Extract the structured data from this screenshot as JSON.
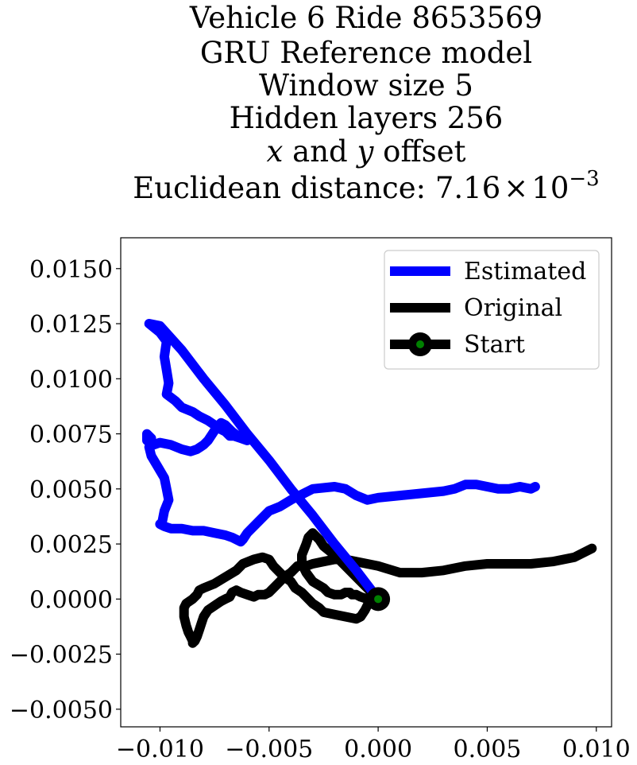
{
  "chart_data": {
    "type": "line",
    "title_lines": [
      "Vehicle 6 Ride 8653569",
      "GRU Reference model",
      "Window size 5",
      "Hidden layers 256"
    ],
    "offset_line": {
      "x_var": "x",
      "and_word": " and ",
      "y_var": "y",
      "suffix": " offset"
    },
    "distance_line": {
      "prefix": "Euclidean distance: ",
      "mantissa": "7.16",
      "times": "×",
      "base": "10",
      "exponent": "−3"
    },
    "xlim": [
      -0.0118,
      0.0107
    ],
    "ylim": [
      -0.0058,
      0.0164
    ],
    "x_ticks": [
      {
        "value": -0.01,
        "label": "−0.010"
      },
      {
        "value": -0.005,
        "label": "−0.005"
      },
      {
        "value": 0.0,
        "label": "0.000"
      },
      {
        "value": 0.005,
        "label": "0.005"
      },
      {
        "value": 0.01,
        "label": "0.010"
      }
    ],
    "y_ticks": [
      {
        "value": -0.005,
        "label": "−0.0050"
      },
      {
        "value": -0.0025,
        "label": "−0.0025"
      },
      {
        "value": 0.0,
        "label": "0.0000"
      },
      {
        "value": 0.0025,
        "label": "0.0025"
      },
      {
        "value": 0.005,
        "label": "0.0050"
      },
      {
        "value": 0.0075,
        "label": "0.0075"
      },
      {
        "value": 0.01,
        "label": "0.0100"
      },
      {
        "value": 0.0125,
        "label": "0.0125"
      },
      {
        "value": 0.015,
        "label": "0.0150"
      }
    ],
    "legend": {
      "placement": "upper-right",
      "entries": [
        {
          "label": "Estimated",
          "color": "#0000ff"
        },
        {
          "label": "Original",
          "color": "#000000"
        },
        {
          "label": "Start",
          "color": "#000000",
          "marker_color": "#008000"
        }
      ]
    },
    "series": [
      {
        "name": "Estimated",
        "color": "#0000ff",
        "x": [
          0.0,
          -0.001,
          -0.002,
          -0.003,
          -0.004,
          -0.005,
          -0.006,
          -0.007,
          -0.008,
          -0.009,
          -0.01,
          -0.0105,
          -0.01,
          -0.0097,
          -0.0098,
          -0.0097,
          -0.0096,
          -0.0097,
          -0.0093,
          -0.009,
          -0.0085,
          -0.0082,
          -0.0078,
          -0.0075,
          -0.0072,
          -0.007,
          -0.0068,
          -0.0066,
          -0.0063,
          -0.006,
          -0.0063,
          -0.0067,
          -0.007,
          -0.0072,
          -0.0074,
          -0.0076,
          -0.0078,
          -0.008,
          -0.0083,
          -0.0086,
          -0.009,
          -0.0095,
          -0.01,
          -0.0103,
          -0.0106,
          -0.0106,
          -0.0104,
          -0.0105,
          -0.0104,
          -0.0101,
          -0.0098,
          -0.0097,
          -0.0096,
          -0.0098,
          -0.0099,
          -0.01,
          -0.0098,
          -0.0095,
          -0.009,
          -0.0085,
          -0.008,
          -0.0075,
          -0.007,
          -0.0067,
          -0.0063,
          -0.0062,
          -0.006,
          -0.0055,
          -0.005,
          -0.0045,
          -0.004,
          -0.003,
          -0.002,
          -0.0015,
          -0.001,
          -0.0005,
          0.0,
          0.001,
          0.002,
          0.003,
          0.0035,
          0.004,
          0.0045,
          0.005,
          0.0055,
          0.006,
          0.0065,
          0.007,
          0.0072
        ],
        "y": [
          0.0,
          0.0013,
          0.0025,
          0.0038,
          0.005,
          0.0063,
          0.0075,
          0.0088,
          0.01,
          0.0113,
          0.0124,
          0.0125,
          0.0121,
          0.0117,
          0.011,
          0.0104,
          0.0098,
          0.0093,
          0.009,
          0.0087,
          0.0085,
          0.0083,
          0.0081,
          0.0079,
          0.0077,
          0.0076,
          0.0074,
          0.0074,
          0.0073,
          0.0072,
          0.0073,
          0.0076,
          0.0079,
          0.008,
          0.0078,
          0.0075,
          0.0072,
          0.007,
          0.0068,
          0.0067,
          0.0068,
          0.007,
          0.0071,
          0.007,
          0.0072,
          0.0075,
          0.0073,
          0.0069,
          0.0065,
          0.006,
          0.0055,
          0.005,
          0.0045,
          0.004,
          0.0035,
          0.0034,
          0.0033,
          0.0032,
          0.0032,
          0.0031,
          0.0031,
          0.003,
          0.0029,
          0.0028,
          0.0026,
          0.0027,
          0.003,
          0.0035,
          0.004,
          0.0042,
          0.0045,
          0.005,
          0.0051,
          0.005,
          0.0047,
          0.0045,
          0.0046,
          0.0047,
          0.0048,
          0.0049,
          0.005,
          0.0052,
          0.0052,
          0.0051,
          0.005,
          0.005,
          0.0051,
          0.005,
          0.0051
        ]
      },
      {
        "name": "Original",
        "color": "#000000",
        "x": [
          0.0098,
          0.009,
          0.008,
          0.007,
          0.006,
          0.005,
          0.004,
          0.003,
          0.002,
          0.001,
          0.0,
          -0.001,
          -0.0015,
          -0.002,
          -0.0025,
          -0.003,
          -0.0033,
          -0.0037,
          -0.004,
          -0.0043,
          -0.0045,
          -0.0047,
          -0.0049,
          -0.005,
          -0.0052,
          -0.0055,
          -0.0057,
          -0.006,
          -0.0063,
          -0.0065,
          -0.0067,
          -0.0068,
          -0.007,
          -0.0072,
          -0.0075,
          -0.0078,
          -0.008,
          -0.0081,
          -0.0082,
          -0.0083,
          -0.0084,
          -0.0085,
          -0.0085,
          -0.0086,
          -0.0087,
          -0.0088,
          -0.0089,
          -0.0089,
          -0.0088,
          -0.0085,
          -0.0083,
          -0.0082,
          -0.008,
          -0.0075,
          -0.007,
          -0.0065,
          -0.0062,
          -0.0057,
          -0.0053,
          -0.005,
          -0.0048,
          -0.0045,
          -0.0043,
          -0.004,
          -0.0038,
          -0.0035,
          -0.0032,
          -0.003,
          -0.0027,
          -0.0025,
          -0.002,
          -0.0015,
          -0.001,
          -0.0008,
          -0.0006,
          -0.0005,
          -0.0004,
          -0.0005,
          -0.0008,
          -0.001,
          -0.0012,
          -0.0013,
          -0.0015,
          -0.0017,
          -0.002,
          -0.0023,
          -0.0025,
          -0.003,
          -0.0033,
          -0.0035,
          -0.0035,
          -0.0033,
          -0.0032,
          -0.003,
          -0.0027,
          -0.0025,
          -0.002,
          -0.0015,
          -0.001,
          -0.0005,
          0.0
        ],
        "y": [
          0.0023,
          0.0019,
          0.0017,
          0.0016,
          0.0016,
          0.0016,
          0.0015,
          0.0013,
          0.0012,
          0.0012,
          0.0015,
          0.0017,
          0.0018,
          0.0018,
          0.0017,
          0.0016,
          0.0015,
          0.0015,
          0.0012,
          0.001,
          0.0008,
          0.0006,
          0.0004,
          0.0003,
          0.0002,
          0.0002,
          0.0001,
          0.0002,
          0.0003,
          0.0004,
          0.0003,
          0.0001,
          0.0,
          -0.0001,
          -0.0003,
          -0.0005,
          -0.0008,
          -0.0011,
          -0.0014,
          -0.0017,
          -0.0019,
          -0.002,
          -0.0019,
          -0.0017,
          -0.0015,
          -0.0012,
          -0.0008,
          -0.0004,
          -0.0002,
          0.0,
          0.0002,
          0.0004,
          0.0005,
          0.0007,
          0.001,
          0.0013,
          0.0016,
          0.0018,
          0.0019,
          0.0018,
          0.0015,
          0.0012,
          0.001,
          0.0008,
          0.0005,
          0.0003,
          0.0,
          -0.0002,
          -0.0004,
          -0.0006,
          -0.0007,
          -0.0008,
          -0.0009,
          -0.0008,
          -0.0005,
          -0.0003,
          -0.0001,
          0.0,
          0.0001,
          0.0002,
          0.0002,
          0.0003,
          0.0003,
          0.0002,
          0.0002,
          0.0003,
          0.0005,
          0.0008,
          0.0012,
          0.0016,
          0.002,
          0.0025,
          0.0028,
          0.003,
          0.0027,
          0.0024,
          0.002,
          0.0015,
          0.001,
          0.0005,
          0.0
        ]
      }
    ],
    "start_point": {
      "name": "Start",
      "x": 0.0,
      "y": 0.0,
      "outer_color": "#000000",
      "inner_color": "#008000"
    }
  }
}
